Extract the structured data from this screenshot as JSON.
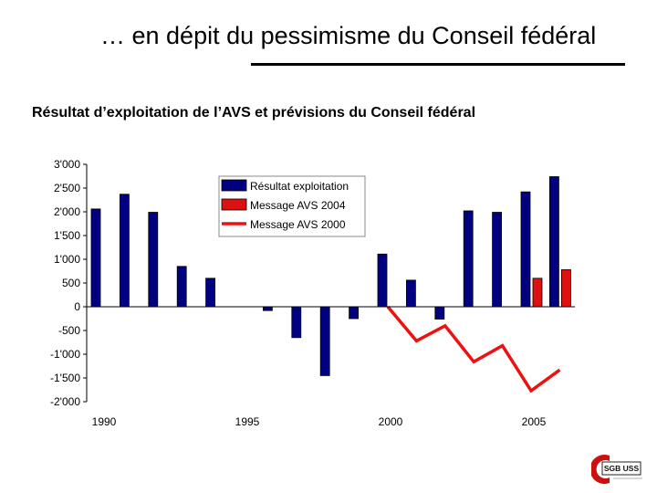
{
  "slide_title": "… en dépit du pessimisme du Conseil fédéral",
  "chart_data": {
    "type": "bar",
    "title": "Résultat d’exploitation de l’AVS et prévisions du Conseil fédéral",
    "x": [
      1990,
      1991,
      1992,
      1993,
      1994,
      1995,
      1996,
      1997,
      1998,
      1999,
      2000,
      2001,
      2002,
      2003,
      2004,
      2005,
      2006
    ],
    "xtick_labels": [
      "1990",
      "1995",
      "2000",
      "2005"
    ],
    "ylim": [
      -2000,
      3000
    ],
    "ytick_labels": [
      "3'000",
      "2'500",
      "2'000",
      "1'500",
      "1'000",
      "500",
      "0",
      "-500",
      "-1'000",
      "-1'500",
      "-2'000"
    ],
    "series": [
      {
        "name": "Résultat exploitation",
        "kind": "bar",
        "color": "#000080",
        "values": [
          2060,
          2370,
          1990,
          850,
          600,
          null,
          -80,
          -650,
          -1450,
          -250,
          1110,
          560,
          -260,
          2020,
          1990,
          2420,
          2740
        ]
      },
      {
        "name": "Message AVS 2004",
        "kind": "bar",
        "color": "#DD1111",
        "values": [
          null,
          null,
          null,
          null,
          null,
          null,
          null,
          null,
          null,
          null,
          null,
          null,
          null,
          null,
          null,
          600,
          780
        ]
      },
      {
        "name": "Message AVS 2000",
        "kind": "line",
        "color": "#EE1111",
        "values": [
          null,
          null,
          null,
          null,
          null,
          null,
          null,
          null,
          null,
          null,
          0,
          -720,
          -400,
          -1160,
          -820,
          -1770,
          -1330
        ]
      }
    ],
    "legend_position": "top-right"
  },
  "logo": {
    "text": "SGB USS",
    "accent_color": "#CC1111"
  }
}
